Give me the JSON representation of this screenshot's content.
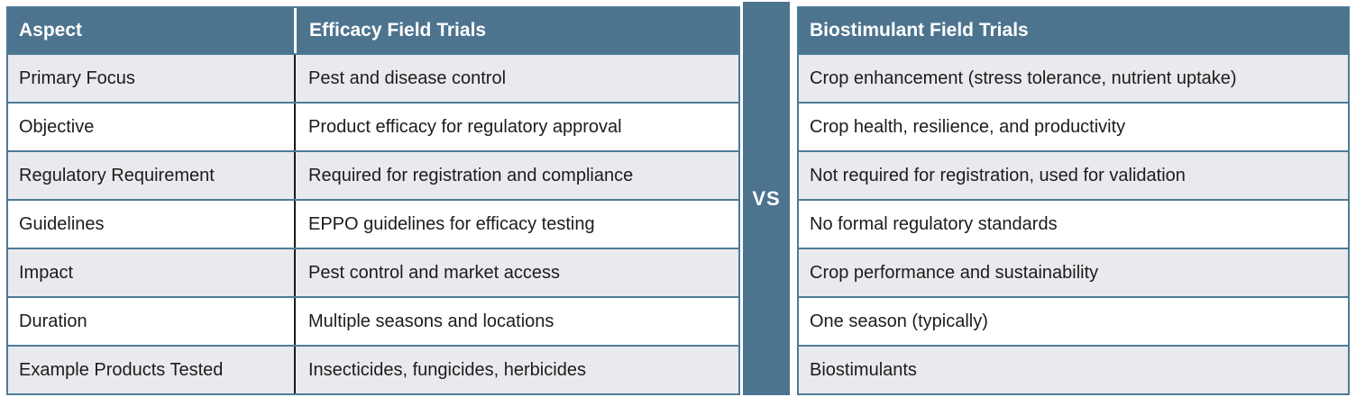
{
  "colors": {
    "teal": "#4D748E",
    "row_alt": "#E9EAED",
    "row_white": "#FFFFFF",
    "row_border": "#4E7A96",
    "col_divider": "#1C1C1C",
    "text": "#1C1C1C",
    "header_text": "#FFFFFF"
  },
  "left_table": {
    "headers": [
      "Aspect",
      "Efficacy Field Trials"
    ]
  },
  "divider": {
    "label": "VS"
  },
  "right_table": {
    "header": "Biostimulant Field Trials"
  },
  "rows": [
    {
      "aspect": "Primary Focus",
      "efficacy": "Pest and disease control",
      "biostimulant": "Crop enhancement (stress tolerance, nutrient uptake)"
    },
    {
      "aspect": "Objective",
      "efficacy": "Product efficacy for regulatory approval",
      "biostimulant": "Crop health, resilience, and productivity"
    },
    {
      "aspect": "Regulatory Requirement",
      "efficacy": "Required for registration and compliance",
      "biostimulant": "Not required for registration, used for validation"
    },
    {
      "aspect": "Guidelines",
      "efficacy": "EPPO guidelines for efficacy testing",
      "biostimulant": "No formal regulatory standards"
    },
    {
      "aspect": "Impact",
      "efficacy": "Pest control and market access",
      "biostimulant": "Crop performance and sustainability"
    },
    {
      "aspect": "Duration",
      "efficacy": "Multiple seasons and locations",
      "biostimulant": "One season (typically)"
    },
    {
      "aspect": "Example Products Tested",
      "efficacy": "Insecticides, fungicides, herbicides",
      "biostimulant": "Biostimulants"
    }
  ]
}
